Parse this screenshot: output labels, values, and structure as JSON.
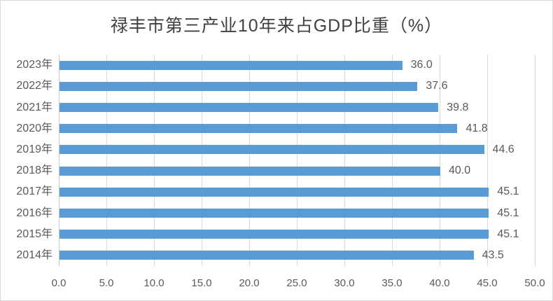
{
  "chart_data": {
    "type": "bar",
    "orientation": "horizontal",
    "title": "禄丰市第三产业10年来占GDP比重（%）",
    "categories": [
      "2023年",
      "2022年",
      "2021年",
      "2020年",
      "2019年",
      "2018年",
      "2017年",
      "2016年",
      "2015年",
      "2014年"
    ],
    "values": [
      36.0,
      37.6,
      39.8,
      41.8,
      44.6,
      40.0,
      45.1,
      45.1,
      45.1,
      43.5
    ],
    "data_labels": [
      "36.0",
      "37.6",
      "39.8",
      "41.8",
      "44.6",
      "40.0",
      "45.1",
      "45.1",
      "45.1",
      "43.5"
    ],
    "xlabel": "",
    "ylabel": "",
    "xlim": [
      0,
      50
    ],
    "xticks": [
      0,
      5,
      10,
      15,
      20,
      25,
      30,
      35,
      40,
      45,
      50
    ],
    "xtick_labels": [
      "0.0",
      "5.0",
      "10.0",
      "15.0",
      "20.0",
      "25.0",
      "30.0",
      "35.0",
      "40.0",
      "45.0",
      "50.0"
    ],
    "grid": "vertical-only",
    "legend": "none",
    "colors": {
      "bar": "#5B9BD5",
      "gridline": "#D9D9D9",
      "labels": "#595959",
      "title": "#404040",
      "background": "#FFFFFF"
    }
  }
}
